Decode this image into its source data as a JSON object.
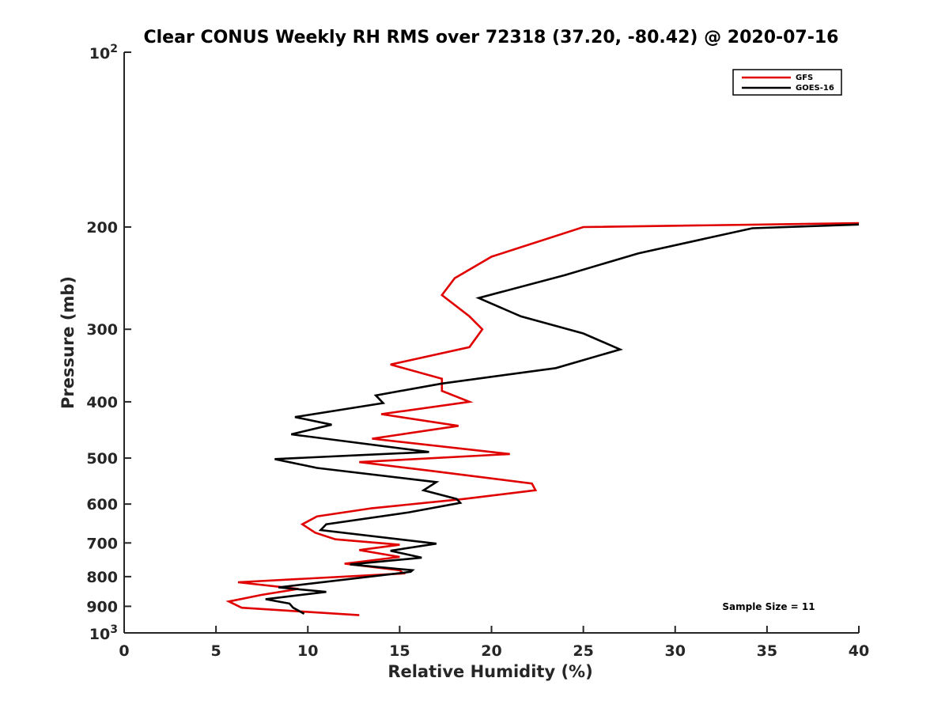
{
  "chart_data": {
    "type": "line",
    "title": "Clear CONUS Weekly RH RMS over 72318 (37.20, -80.42) @ 2020-07-16",
    "xlabel": "Relative Humidity (%)",
    "ylabel": "Pressure (mb)",
    "xlim": [
      0,
      40
    ],
    "ylim": [
      100,
      1000
    ],
    "yscale": "log",
    "y_reversed": true,
    "xticks": [
      0,
      5,
      10,
      15,
      20,
      25,
      30,
      35,
      40
    ],
    "xtick_labels": [
      "0",
      "5",
      "10",
      "15",
      "20",
      "25",
      "30",
      "35",
      "40"
    ],
    "yticks": [
      200,
      300,
      400,
      500,
      600,
      700,
      800,
      900
    ],
    "ytick_labels": [
      "200",
      "300",
      "400",
      "500",
      "600",
      "700",
      "800",
      "900"
    ],
    "ylog_ticks": [
      {
        "value": 100,
        "base": "10",
        "exp": "2"
      },
      {
        "value": 1000,
        "base": "10",
        "exp": "3"
      }
    ],
    "grid": false,
    "legend_position": "top-right",
    "annotation": "Sample Size = 11",
    "series": [
      {
        "name": "GFS",
        "color": "#e00000",
        "points": [
          [
            40.0,
            197
          ],
          [
            25.0,
            200
          ],
          [
            20.0,
            225
          ],
          [
            18.0,
            245
          ],
          [
            17.3,
            262
          ],
          [
            18.8,
            285
          ],
          [
            19.5,
            300
          ],
          [
            18.8,
            322
          ],
          [
            14.5,
            345
          ],
          [
            17.3,
            365
          ],
          [
            17.3,
            383
          ],
          [
            18.8,
            400
          ],
          [
            14.0,
            420
          ],
          [
            18.2,
            440
          ],
          [
            13.5,
            463
          ],
          [
            21.0,
            492
          ],
          [
            12.8,
            508
          ],
          [
            16.5,
            525
          ],
          [
            22.2,
            553
          ],
          [
            22.4,
            568
          ],
          [
            18.5,
            588
          ],
          [
            13.5,
            610
          ],
          [
            10.5,
            630
          ],
          [
            9.7,
            650
          ],
          [
            10.4,
            672
          ],
          [
            11.5,
            690
          ],
          [
            15.0,
            705
          ],
          [
            12.8,
            720
          ],
          [
            15.0,
            740
          ],
          [
            12.0,
            760
          ],
          [
            15.0,
            780
          ],
          [
            15.2,
            790
          ],
          [
            6.2,
            818
          ],
          [
            9.5,
            840
          ],
          [
            7.5,
            860
          ],
          [
            5.7,
            883
          ],
          [
            6.4,
            905
          ],
          [
            12.8,
            932
          ]
        ]
      },
      {
        "name": "GOES-16",
        "color": "#000000",
        "points": [
          [
            40.0,
            198
          ],
          [
            34.2,
            201
          ],
          [
            28.0,
            222
          ],
          [
            24.0,
            242
          ],
          [
            19.3,
            265
          ],
          [
            21.6,
            285
          ],
          [
            25.0,
            305
          ],
          [
            27.0,
            325
          ],
          [
            23.5,
            350
          ],
          [
            17.3,
            372
          ],
          [
            13.7,
            390
          ],
          [
            14.1,
            402
          ],
          [
            9.3,
            425
          ],
          [
            11.3,
            438
          ],
          [
            9.1,
            455
          ],
          [
            16.6,
            488
          ],
          [
            8.2,
            502
          ],
          [
            10.5,
            520
          ],
          [
            17.0,
            550
          ],
          [
            16.3,
            568
          ],
          [
            18.1,
            588
          ],
          [
            18.3,
            597
          ],
          [
            15.5,
            620
          ],
          [
            11.0,
            650
          ],
          [
            10.7,
            665
          ],
          [
            17.0,
            702
          ],
          [
            14.5,
            722
          ],
          [
            16.2,
            742
          ],
          [
            12.3,
            762
          ],
          [
            15.7,
            780
          ],
          [
            15.6,
            785
          ],
          [
            8.4,
            835
          ],
          [
            11.0,
            850
          ],
          [
            7.7,
            875
          ],
          [
            9.0,
            890
          ],
          [
            9.2,
            905
          ],
          [
            9.8,
            927
          ]
        ]
      }
    ]
  }
}
